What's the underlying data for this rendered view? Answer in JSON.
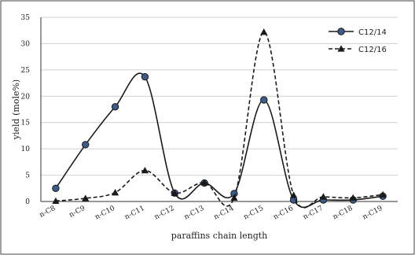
{
  "chart_data": {
    "type": "line",
    "title": "",
    "xlabel": "paraffins chain length",
    "ylabel": "yield (mole%)",
    "ylim": [
      0,
      35
    ],
    "yticks": [
      0,
      5,
      10,
      15,
      20,
      25,
      30,
      35
    ],
    "grid": true,
    "legend_position": "top-right",
    "categories": [
      "n-C8",
      "n-C9",
      "n-C10",
      "n-C11",
      "n-C12",
      "n-C13",
      "n-C14",
      "n-C15",
      "n-C16",
      "n-C17",
      "n-C18",
      "n-C19"
    ],
    "series": [
      {
        "name": "C12/14",
        "line_style": "solid",
        "marker": "circle",
        "color": "#1a1a1a",
        "values": [
          2.5,
          10.8,
          18.0,
          23.7,
          1.6,
          3.5,
          1.5,
          19.3,
          0.3,
          0.3,
          0.3,
          1.0
        ]
      },
      {
        "name": "C12/16",
        "line_style": "dashed",
        "marker": "triangle",
        "color": "#1a1a1a",
        "values": [
          0.1,
          0.6,
          1.7,
          5.9,
          1.6,
          3.6,
          0.7,
          32.2,
          1.2,
          0.9,
          0.7,
          1.3
        ]
      }
    ]
  }
}
